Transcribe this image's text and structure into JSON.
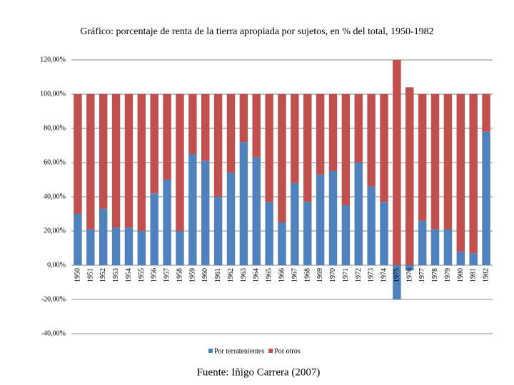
{
  "chart_data": {
    "type": "stacked_bar",
    "title": "Gráfico: porcentaje de renta de la tierra apropiada por sujetos, en % del total, 1950-1982",
    "source": "Fuente: Iñigo Carrera (2007)",
    "categories": [
      "1950",
      "1951",
      "1952",
      "1953",
      "1954",
      "1955",
      "1956",
      "1957",
      "1958",
      "1959",
      "1960",
      "1961",
      "1962",
      "1963",
      "1964",
      "1965",
      "1966",
      "1967",
      "1968",
      "1969",
      "1970",
      "1971",
      "1972",
      "1973",
      "1974",
      "1975",
      "1976",
      "1977",
      "1978",
      "1979",
      "1980",
      "1981",
      "1982"
    ],
    "series": [
      {
        "name": "Por terratenientes",
        "color": "#4f81bd",
        "values": [
          30,
          21,
          33,
          22,
          22,
          20,
          42,
          50,
          20,
          65,
          61,
          40,
          54,
          72,
          63,
          37,
          25,
          48,
          37,
          53,
          55,
          35,
          60,
          46,
          37,
          -20,
          -3,
          26,
          21,
          21,
          8,
          7,
          78
        ]
      },
      {
        "name": "Por otros",
        "color": "#c0504d",
        "values": [
          70,
          79,
          67,
          78,
          78,
          80,
          58,
          50,
          80,
          35,
          39,
          60,
          46,
          28,
          37,
          63,
          75,
          52,
          63,
          47,
          45,
          65,
          40,
          54,
          63,
          120,
          104,
          74,
          79,
          79,
          92,
          93,
          22
        ]
      }
    ],
    "ylim": [
      -40,
      120
    ],
    "yticks": [
      {
        "value": -40,
        "label": "-40,00%"
      },
      {
        "value": -20,
        "label": "-20,00%"
      },
      {
        "value": 0,
        "label": "0,00%"
      },
      {
        "value": 20,
        "label": "20,00%"
      },
      {
        "value": 40,
        "label": "40,00%"
      },
      {
        "value": 60,
        "label": "60,00%"
      },
      {
        "value": 80,
        "label": "80,00%"
      },
      {
        "value": 100,
        "label": "100,00%"
      },
      {
        "value": 120,
        "label": "120,00%"
      }
    ],
    "grid": true,
    "legend": "bottom"
  }
}
